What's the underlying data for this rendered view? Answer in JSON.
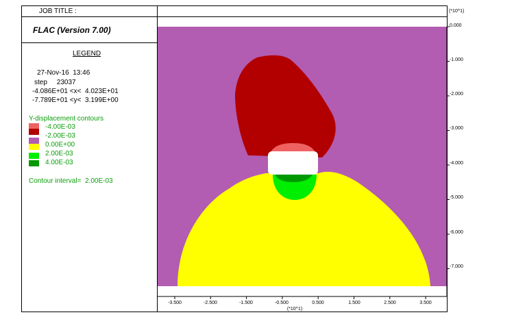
{
  "header": {
    "job_title": "JOB TITLE :",
    "version": "FLAC (Version 7.00)"
  },
  "legend": {
    "title": "LEGEND",
    "date": "27-Nov-16  13:46",
    "step": "step     23037",
    "x_range": "-4.086E+01 <x<  4.023E+01",
    "y_range": "-7.789E+01 <y<  3.199E+00",
    "contour_title": "Y-displacement contours",
    "contours": [
      {
        "label": "-4.00E-03",
        "color": "#f06262"
      },
      {
        "label": "-2.00E-03",
        "color": "#b20000"
      },
      {
        "label": "0.00E+00",
        "color": "#b25cb2"
      },
      {
        "label": "2.00E-03",
        "color": "#ffff00"
      },
      {
        "label": "4.00E-03",
        "color": "#00ee00"
      }
    ],
    "extra_swatch": "#009a00",
    "interval": "Contour interval=  2.00E-03"
  },
  "chart_data": {
    "type": "contour",
    "y_axis_multiplier": "(*10^1)",
    "x_axis_multiplier": "(*10^1)",
    "y_ticks": [
      "0.000",
      "-1.000",
      "-2.000",
      "-3.000",
      "-4.000",
      "-5.000",
      "-6.000",
      "-7.000"
    ],
    "x_ticks": [
      "-3.500",
      "-2.500",
      "-1.500",
      "-0.500",
      "0.500",
      "1.500",
      "2.500",
      "3.500"
    ],
    "xlim": [
      -4.086,
      4.023
    ],
    "ylim": [
      -7.789,
      0.3199
    ],
    "colors": {
      "background": "#b25cb2",
      "dark_red": "#b20000",
      "light_red": "#f06262",
      "yellow": "#ffff00",
      "green": "#00ee00",
      "dark_green": "#009a00",
      "excavation": "#ffffff"
    }
  }
}
